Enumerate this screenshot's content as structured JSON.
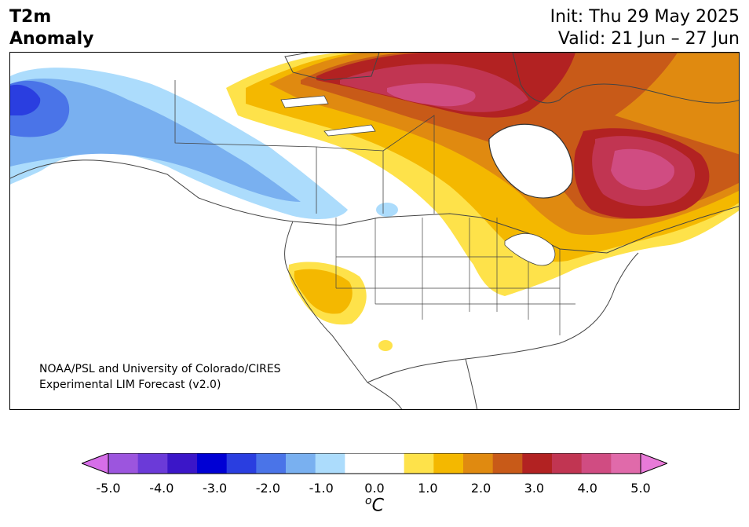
{
  "title": {
    "line1": "T2m",
    "line2": "Anomaly"
  },
  "init": "Init: Thu 29 May 2025",
  "valid": "Valid: 21 Jun – 27 Jun",
  "credit": {
    "line1": "NOAA/PSL and University of Colorado/CIRES",
    "line2": "Experimental LIM Forecast (v2.0)"
  },
  "colorbar": {
    "colors": [
      "#d66ee8",
      "#9c55de",
      "#6b3ad8",
      "#3b16c8",
      "#0000d4",
      "#2a3ee0",
      "#4a74e8",
      "#79b0f0",
      "#acdcfc",
      "#ffffff",
      "#ffffff",
      "#fee24a",
      "#f4b800",
      "#e08a10",
      "#c85a18",
      "#b22222",
      "#c13552",
      "#d04c82",
      "#e06aaa",
      "#e87ad8"
    ],
    "ticks": [
      "-5.0",
      "-4.0",
      "-3.0",
      "-2.0",
      "-1.0",
      "0.0",
      "1.0",
      "2.0",
      "3.0",
      "4.0",
      "5.0"
    ],
    "unit": "oC"
  }
}
